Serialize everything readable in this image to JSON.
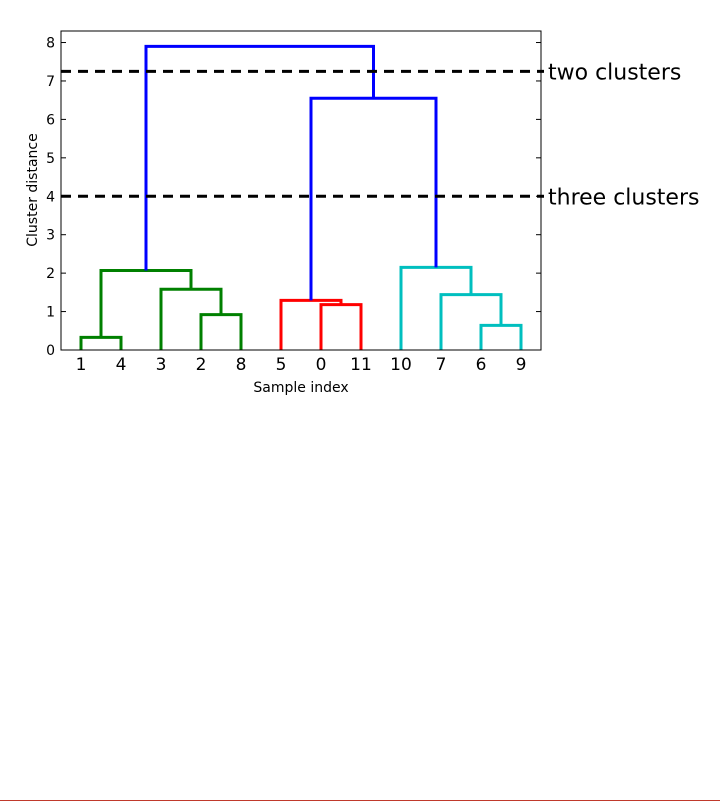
{
  "chart_data": {
    "type": "dendrogram",
    "xlabel": "Sample index",
    "ylabel": "Cluster distance",
    "ylim": [
      0,
      8.3
    ],
    "yticks": [
      0,
      1,
      2,
      3,
      4,
      5,
      6,
      7,
      8
    ],
    "leaves": [
      "1",
      "4",
      "3",
      "2",
      "8",
      "5",
      "0",
      "11",
      "10",
      "7",
      "6",
      "9"
    ],
    "colors": {
      "green": "#008000",
      "red": "#ff0000",
      "cyan": "#00bfbf",
      "blue": "#0000ff",
      "cut": "#000000"
    },
    "links": [
      {
        "name": "link-1-4",
        "x": [
          0,
          0,
          1,
          1
        ],
        "y": [
          0,
          0.33,
          0.33,
          0
        ],
        "color": "green"
      },
      {
        "name": "link-2-8",
        "x": [
          3,
          3,
          4,
          4
        ],
        "y": [
          0,
          0.92,
          0.92,
          0
        ],
        "color": "green"
      },
      {
        "name": "link-3-28",
        "x": [
          2,
          2,
          3.5,
          3.5
        ],
        "y": [
          0,
          1.58,
          1.58,
          0.92
        ],
        "color": "green"
      },
      {
        "name": "link-14-328",
        "x": [
          0.5,
          0.5,
          2.75,
          2.75
        ],
        "y": [
          0.33,
          2.07,
          2.07,
          1.58
        ],
        "color": "green"
      },
      {
        "name": "link-0-11",
        "x": [
          6,
          6,
          7,
          7
        ],
        "y": [
          0,
          1.18,
          1.18,
          0
        ],
        "color": "red"
      },
      {
        "name": "link-5-011",
        "x": [
          5,
          5,
          6.5,
          6.5
        ],
        "y": [
          0,
          1.29,
          1.29,
          1.18
        ],
        "color": "red"
      },
      {
        "name": "link-6-9",
        "x": [
          10,
          10,
          11,
          11
        ],
        "y": [
          0,
          0.64,
          0.64,
          0
        ],
        "color": "cyan"
      },
      {
        "name": "link-7-69",
        "x": [
          9,
          9,
          10.5,
          10.5
        ],
        "y": [
          0,
          1.44,
          1.44,
          0.64
        ],
        "color": "cyan"
      },
      {
        "name": "link-10-769",
        "x": [
          8,
          8,
          9.75,
          9.75
        ],
        "y": [
          0,
          2.15,
          2.15,
          1.44
        ],
        "color": "cyan"
      },
      {
        "name": "link-red-cyan",
        "x": [
          5.75,
          5.75,
          8.875,
          8.875
        ],
        "y": [
          1.29,
          6.55,
          6.55,
          2.15
        ],
        "color": "blue"
      },
      {
        "name": "link-root",
        "x": [
          1.625,
          1.625,
          7.3125,
          7.3125
        ],
        "y": [
          2.07,
          7.9,
          7.9,
          6.55
        ],
        "color": "blue"
      }
    ],
    "cut_lines": [
      {
        "y": 7.25,
        "label": "two clusters"
      },
      {
        "y": 4.0,
        "label": "three clusters"
      }
    ]
  }
}
